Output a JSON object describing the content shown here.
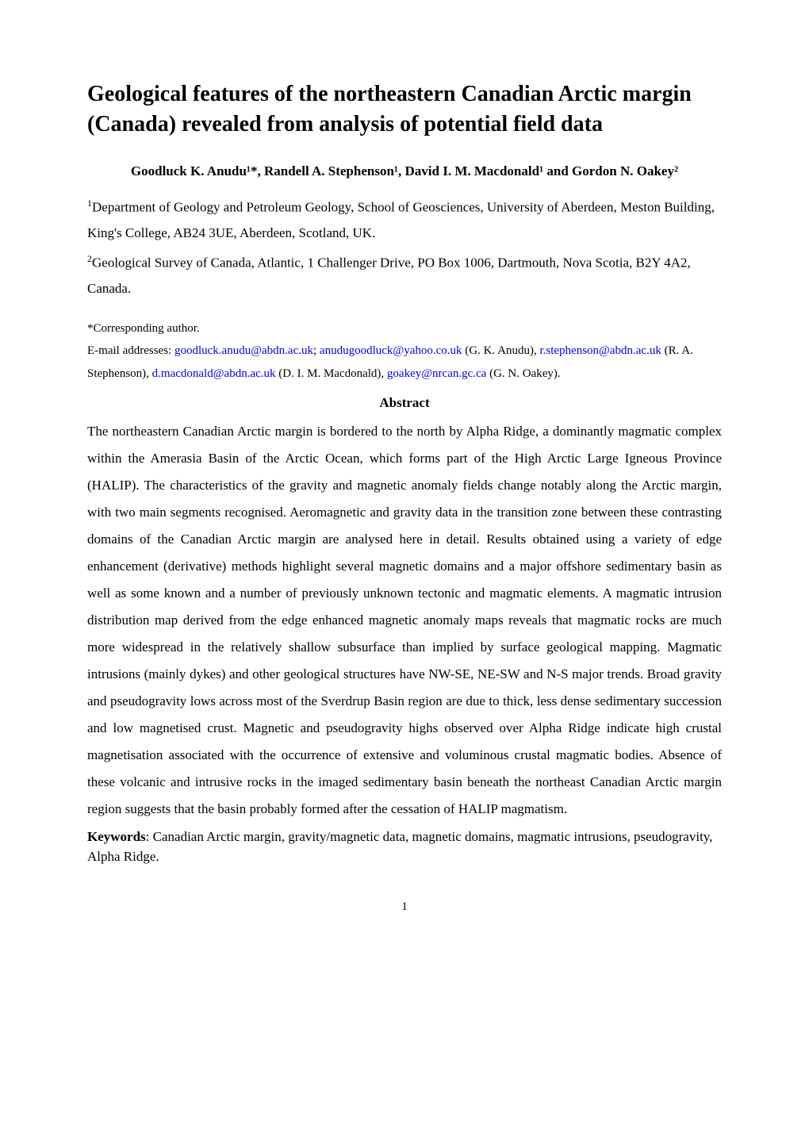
{
  "title": "Geological features of the northeastern Canadian Arctic margin (Canada) revealed from analysis of potential field data",
  "authors_line": "Goodluck K. Anudu¹*, Randell A. Stephenson¹, David I. M. Macdonald¹ and Gordon N. Oakey²",
  "affiliations": {
    "aff1_sup": "1",
    "aff1_text": "Department of Geology and Petroleum Geology, School of Geosciences, University of Aberdeen, Meston Building, King's College, AB24 3UE, Aberdeen, Scotland, UK.",
    "aff2_sup": "2",
    "aff2_text": "Geological Survey of Canada, Atlantic, 1 Challenger Drive, PO Box 1006, Dartmouth, Nova Scotia,  B2Y 4A2, Canada."
  },
  "corresponding_note": "*Corresponding author.",
  "emails": {
    "prefix": "E-mail addresses: ",
    "e1": "goodluck.anudu@abdn.ac.uk",
    "sep1": "; ",
    "e2": "anudugoodluck@yahoo.co.uk",
    "suffix1": " (G. K. Anudu), ",
    "e3": "r.stephenson@abdn.ac.uk",
    "suffix2": " (R. A. Stephenson), ",
    "e4": "d.macdonald@abdn.ac.uk",
    "suffix3": " (D. I. M. Macdonald), ",
    "e5": "goakey@nrcan.gc.ca",
    "suffix4": " (G. N. Oakey)."
  },
  "abstract": {
    "heading": "Abstract",
    "body": "The northeastern Canadian Arctic margin is bordered to the north by Alpha Ridge, a dominantly magmatic complex within the Amerasia Basin of the Arctic Ocean, which forms part of the High Arctic Large Igneous Province (HALIP). The characteristics of the gravity and magnetic anomaly fields change notably along the Arctic margin, with two main segments recognised. Aeromagnetic and gravity data in the transition zone between these contrasting domains of the Canadian Arctic margin are analysed here in detail. Results obtained using a variety of edge enhancement (derivative) methods highlight several magnetic domains and a major offshore sedimentary basin as well as some known and a number of previously unknown tectonic and magmatic elements. A magmatic intrusion distribution map derived from the edge enhanced magnetic anomaly maps reveals that magmatic rocks are much more widespread in the relatively shallow subsurface than implied by surface geological mapping. Magmatic intrusions (mainly dykes) and other geological structures have NW-SE, NE-SW and N-S major trends. Broad gravity and pseudogravity lows across most of the Sverdrup Basin region are due to thick, less dense sedimentary succession and low magnetised crust. Magnetic and pseudogravity highs observed over Alpha Ridge indicate high crustal magnetisation associated with the occurrence of extensive and voluminous crustal magmatic bodies. Absence of these volcanic and intrusive rocks in the imaged sedimentary basin beneath the northeast Canadian Arctic margin region suggests that the basin probably formed after the cessation of HALIP magmatism."
  },
  "keywords": {
    "label": "Keywords",
    "text": ": Canadian Arctic margin, gravity/magnetic data, magnetic domains, magmatic intrusions, pseudogravity, Alpha Ridge."
  },
  "page_number": "1",
  "colors": {
    "link": "#0000ee",
    "text": "#000000",
    "background": "#ffffff"
  },
  "typography": {
    "title_fontsize_pt": 21,
    "authors_fontsize_pt": 13,
    "body_fontsize_pt": 13,
    "affiliation_fontsize_pt": 13,
    "small_fontsize_pt": 11,
    "font_family": "Times New Roman"
  }
}
